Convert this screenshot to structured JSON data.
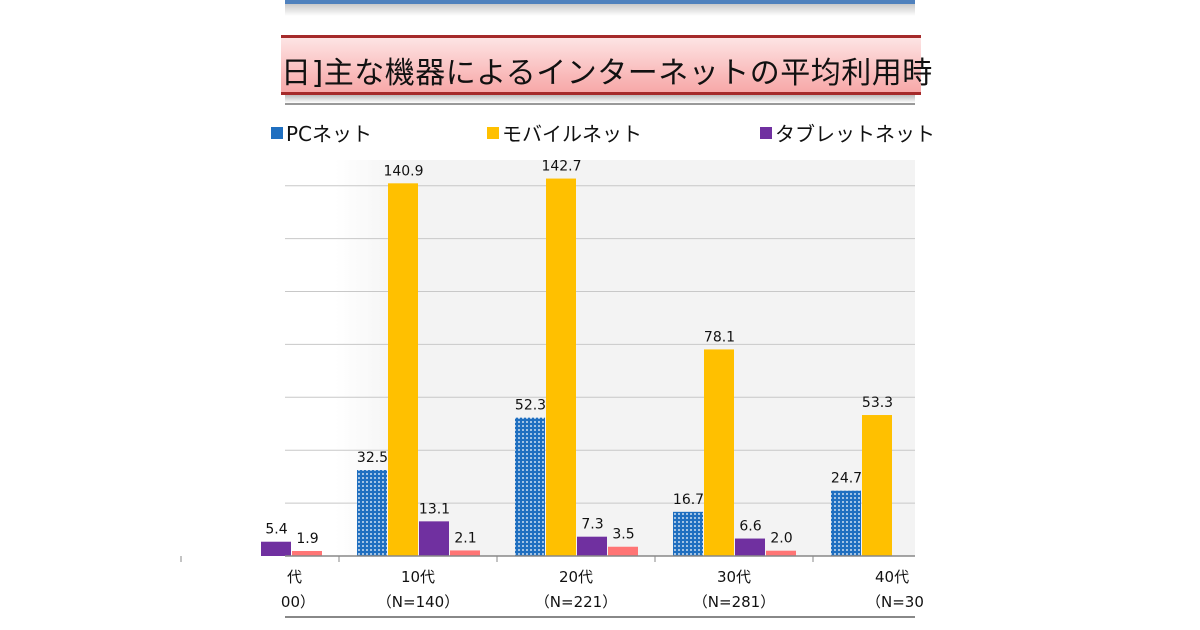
{
  "title": "日]主な機器によるインターネットの平均利用時",
  "legend": [
    {
      "label": "PCネット",
      "color": "#1f6fc0"
    },
    {
      "label": "モバイルネット",
      "color": "#ffc000"
    },
    {
      "label": "タブレットネット",
      "color": "#7030a0"
    }
  ],
  "chart_data": {
    "type": "bar",
    "categories": [
      {
        "name": "代",
        "n": "00）"
      },
      {
        "name": "10代",
        "n": "（N=140）"
      },
      {
        "name": "20代",
        "n": "（N=221）"
      },
      {
        "name": "30代",
        "n": "（N=281）"
      },
      {
        "name": "40代",
        "n": "（N=30"
      }
    ],
    "series": [
      {
        "name": "PCネット",
        "color": "#1f6fc0",
        "pattern": "dotted",
        "values": [
          null,
          32.5,
          52.3,
          16.7,
          24.7
        ]
      },
      {
        "name": "モバイルネット",
        "color": "#ffc000",
        "values": [
          null,
          140.9,
          142.7,
          78.1,
          53.3
        ]
      },
      {
        "name": "タブレットネット",
        "color": "#7030a0",
        "values": [
          5.4,
          13.1,
          7.3,
          6.6,
          null
        ]
      },
      {
        "color": "#ff7575",
        "values": [
          1.9,
          2.1,
          3.5,
          2.0,
          null
        ]
      }
    ],
    "ylim": [
      0,
      150
    ],
    "grid": true,
    "gridStep": 20,
    "legend_position": "top"
  }
}
